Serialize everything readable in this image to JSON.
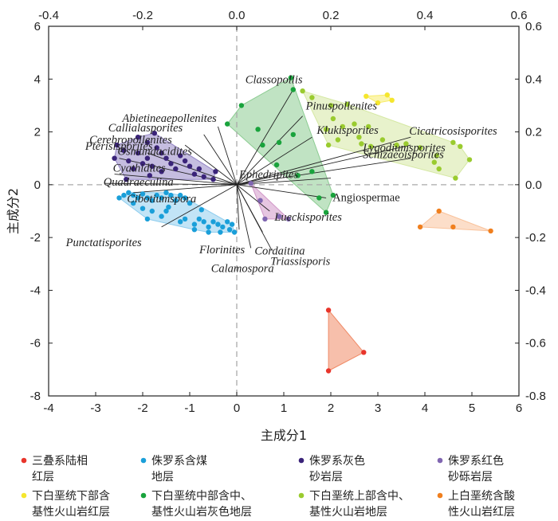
{
  "chart_data": {
    "type": "scatter",
    "title": "",
    "xlabel": "主成分1",
    "ylabel": "主成分2",
    "xlim": [
      -4,
      6
    ],
    "ylim": [
      -8,
      6
    ],
    "x_ticks": [
      "-4",
      "-3",
      "-2",
      "-1",
      "0",
      "1",
      "2",
      "3",
      "4",
      "5",
      "6"
    ],
    "y_ticks": [
      "-8",
      "-6",
      "-4",
      "-2",
      "0",
      "2",
      "4",
      "6"
    ],
    "x2lim": [
      -0.4,
      0.6
    ],
    "y2lim": [
      -0.8,
      0.6
    ],
    "x2_ticks": [
      "-0.4",
      "-0.2",
      "0.0",
      "0.2",
      "0.4",
      "0.6"
    ],
    "y2_ticks": [
      "-0.8",
      "-0.6",
      "-0.4",
      "-0.2",
      "0.0",
      "0.2",
      "0.4",
      "0.6"
    ],
    "grid": false,
    "zero_lines": true,
    "legend_position": "bottom",
    "series": [
      {
        "name": "三叠系陆相红层",
        "name_lines": [
          "三叠系陆相",
          "红层"
        ],
        "color": "#e8352b",
        "hull_color": "#f08a66",
        "points": [
          [
            1.95,
            -4.75
          ],
          [
            2.7,
            -6.35
          ],
          [
            1.95,
            -7.05
          ]
        ]
      },
      {
        "name": "侏罗系含煤地层",
        "name_lines": [
          "侏罗系含煤",
          "地层"
        ],
        "color": "#1a9fd9",
        "hull_color": "#8fcdee",
        "points": [
          [
            -2.5,
            -0.5
          ],
          [
            -2.4,
            -0.4
          ],
          [
            -2.3,
            -0.3
          ],
          [
            -2.2,
            -0.4
          ],
          [
            -2.1,
            -0.5
          ],
          [
            -2.0,
            -0.35
          ],
          [
            -1.9,
            -0.5
          ],
          [
            -1.8,
            -0.6
          ],
          [
            -1.7,
            -0.4
          ],
          [
            -1.6,
            -0.5
          ],
          [
            -1.5,
            -0.3
          ],
          [
            -1.4,
            -0.4
          ],
          [
            -1.3,
            -0.6
          ],
          [
            -1.2,
            -0.4
          ],
          [
            -1.1,
            -0.5
          ],
          [
            -1.0,
            -0.7
          ],
          [
            -1.9,
            -1.3
          ],
          [
            -1.8,
            -1.0
          ],
          [
            -1.6,
            -1.2
          ],
          [
            -1.5,
            -1.0
          ],
          [
            -1.2,
            -1.4
          ],
          [
            -1.1,
            -1.3
          ],
          [
            -0.9,
            -1.5
          ],
          [
            -0.8,
            -1.3
          ],
          [
            -0.7,
            -1.4
          ],
          [
            -0.6,
            -1.6
          ],
          [
            -0.5,
            -1.4
          ],
          [
            -0.4,
            -1.5
          ],
          [
            -0.35,
            -1.8
          ],
          [
            -0.3,
            -1.6
          ],
          [
            -0.2,
            -1.4
          ],
          [
            -0.1,
            -1.5
          ],
          [
            -0.05,
            -1.8
          ],
          [
            -0.15,
            -1.7
          ],
          [
            -0.6,
            -1.8
          ],
          [
            -0.9,
            -1.7
          ],
          [
            -2.0,
            -0.9
          ],
          [
            -2.2,
            -0.7
          ],
          [
            -1.45,
            -0.85
          ],
          [
            -0.75,
            -0.95
          ]
        ]
      },
      {
        "name": "侏罗系灰色砂岩层",
        "name_lines": [
          "侏罗系灰色",
          "砂岩层"
        ],
        "color": "#3a2379",
        "hull_color": "#9687c7",
        "points": [
          [
            -2.55,
            1.5
          ],
          [
            -2.4,
            1.3
          ],
          [
            -2.6,
            1.0
          ],
          [
            -2.3,
            0.9
          ],
          [
            -2.1,
            1.2
          ],
          [
            -1.9,
            1.0
          ],
          [
            -2.0,
            0.8
          ],
          [
            -1.8,
            0.7
          ],
          [
            -2.2,
            0.6
          ],
          [
            -2.1,
            1.8
          ],
          [
            -1.9,
            1.6
          ],
          [
            -1.7,
            1.4
          ],
          [
            -1.6,
            1.2
          ],
          [
            -1.5,
            1.0
          ],
          [
            -1.4,
            0.8
          ],
          [
            -1.3,
            0.6
          ],
          [
            -1.6,
            0.5
          ],
          [
            -1.2,
            1.1
          ],
          [
            -1.1,
            0.9
          ],
          [
            -1.0,
            0.7
          ],
          [
            -0.9,
            0.4
          ],
          [
            -0.8,
            0.6
          ],
          [
            -0.7,
            0.3
          ],
          [
            -0.5,
            0.2
          ],
          [
            -0.45,
            0.5
          ],
          [
            -1.75,
            1.95
          ],
          [
            -2.35,
            0.2
          ],
          [
            -1.85,
            0.35
          ]
        ]
      },
      {
        "name": "侏罗系红色砂砾岩层",
        "name_lines": [
          "侏罗系红色",
          "砂砾岩层"
        ],
        "color": "#8066b1",
        "hull_color": "#d197c8",
        "points": [
          [
            0.3,
            0.05
          ],
          [
            0.5,
            -0.6
          ],
          [
            0.6,
            -1.3
          ],
          [
            0.9,
            -1.2
          ],
          [
            1.1,
            -1.3
          ]
        ]
      },
      {
        "name": "下白垩统下部含基性火山岩红层",
        "name_lines": [
          "下白垩统下部含",
          "基性火山岩红层"
        ],
        "color": "#f5e62e",
        "hull_color": "#f8ec6a",
        "points": [
          [
            2.75,
            3.35
          ],
          [
            3.0,
            3.1
          ],
          [
            3.3,
            3.2
          ],
          [
            3.2,
            3.4
          ]
        ]
      },
      {
        "name": "下白垩统中部含中、基性火山岩灰色地层",
        "name_lines": [
          "下白垩统中部含中、",
          "基性火山岩灰色地层"
        ],
        "color": "#19a33c",
        "hull_color": "#8ccc92",
        "points": [
          [
            0.1,
            3.0
          ],
          [
            1.15,
            4.05
          ],
          [
            -0.2,
            2.3
          ],
          [
            1.2,
            3.6
          ],
          [
            0.45,
            2.1
          ],
          [
            0.55,
            1.5
          ],
          [
            0.9,
            1.6
          ],
          [
            1.2,
            1.9
          ],
          [
            1.6,
            0.5
          ],
          [
            1.75,
            -0.5
          ],
          [
            2.05,
            -0.4
          ],
          [
            1.9,
            -1.05
          ],
          [
            1.3,
            0.35
          ],
          [
            0.85,
            0.75
          ]
        ]
      },
      {
        "name": "下白垩统上部含中、基性火山岩地层",
        "name_lines": [
          "下白垩统上部含中、",
          "基性火山岩地层"
        ],
        "color": "#9acb2f",
        "hull_color": "#d5e8a3",
        "points": [
          [
            1.4,
            3.55
          ],
          [
            1.6,
            3.3
          ],
          [
            2.0,
            3.0
          ],
          [
            2.35,
            3.05
          ],
          [
            2.05,
            2.5
          ],
          [
            2.25,
            2.2
          ],
          [
            2.5,
            2.3
          ],
          [
            2.8,
            2.2
          ],
          [
            1.9,
            2.1
          ],
          [
            2.15,
            1.7
          ],
          [
            1.95,
            1.5
          ],
          [
            2.6,
            1.8
          ],
          [
            3.1,
            1.7
          ],
          [
            3.4,
            1.5
          ],
          [
            2.85,
            1.45
          ],
          [
            2.65,
            1.55
          ],
          [
            3.6,
            1.55
          ],
          [
            3.9,
            1.4
          ],
          [
            4.25,
            1.1
          ],
          [
            4.3,
            0.6
          ],
          [
            4.6,
            1.6
          ],
          [
            4.75,
            1.45
          ],
          [
            4.95,
            0.95
          ],
          [
            4.2,
            0.85
          ],
          [
            4.65,
            0.25
          ]
        ]
      },
      {
        "name": "上白垩统含酸性火山岩红层",
        "name_lines": [
          "上白垩统含酸",
          "性火山岩红层"
        ],
        "color": "#f07f1e",
        "hull_color": "#f9c39c",
        "points": [
          [
            4.3,
            -1.0
          ],
          [
            3.9,
            -1.6
          ],
          [
            4.6,
            -1.6
          ],
          [
            5.4,
            -1.75
          ]
        ]
      }
    ],
    "loadings": [
      {
        "name": "Classopollis",
        "x": 0.12,
        "y": 0.36
      },
      {
        "name": "Pinuspollenites",
        "x": 0.14,
        "y": 0.26
      },
      {
        "name": "Klukisporites",
        "x": 0.16,
        "y": 0.18
      },
      {
        "name": "Cicatricosisporites",
        "x": 0.37,
        "y": 0.18
      },
      {
        "name": "Lygodiumsporites",
        "x": 0.37,
        "y": 0.15
      },
      {
        "name": "Schizaeoisporites",
        "x": 0.37,
        "y": 0.1
      },
      {
        "name": "Ephedripites",
        "x": 0.2,
        "y": 0.025
      },
      {
        "name": "Angiospermae",
        "x": 0.19,
        "y": -0.05
      },
      {
        "name": "Lueckisporites",
        "x": 0.07,
        "y": -0.1
      },
      {
        "name": "Cordaitina",
        "x": 0.055,
        "y": -0.18
      },
      {
        "name": "Triassisporis",
        "x": 0.075,
        "y": -0.25
      },
      {
        "name": "Calamospora",
        "x": 0.03,
        "y": -0.24
      },
      {
        "name": "Florinites",
        "x": 0.005,
        "y": -0.17
      },
      {
        "name": "Punctatisporites",
        "x": -0.16,
        "y": -0.16
      },
      {
        "name": "Cibotiumspora",
        "x": -0.22,
        "y": -0.03
      },
      {
        "name": "Quadraeculina",
        "x": -0.28,
        "y": 0.005
      },
      {
        "name": "Cyathidites",
        "x": -0.26,
        "y": 0.04
      },
      {
        "name": "Osmundacidites",
        "x": -0.25,
        "y": 0.1
      },
      {
        "name": "Pterisisporites",
        "x": -0.19,
        "y": 0.12
      },
      {
        "name": "Cerebropollenites",
        "x": -0.11,
        "y": 0.15
      },
      {
        "name": "Callialasporites",
        "x": -0.07,
        "y": 0.19
      },
      {
        "name": "Abietineaepollenites",
        "x": -0.04,
        "y": 0.22
      }
    ]
  }
}
